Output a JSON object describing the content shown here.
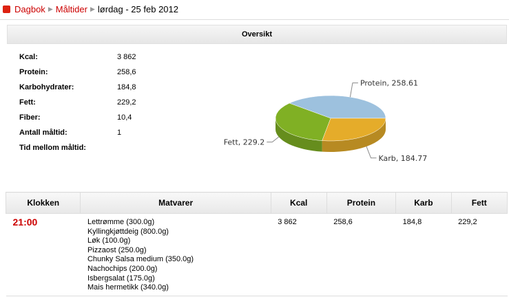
{
  "breadcrumb": [
    "Dagbok",
    "Måltider",
    "lørdag - 25 feb 2012"
  ],
  "overview": {
    "title": "Oversikt",
    "stats": [
      [
        "Kcal:",
        "3 862"
      ],
      [
        "Protein:",
        "258,6"
      ],
      [
        "Karbohydrater:",
        "184,8"
      ],
      [
        "Fett:",
        "229,2"
      ],
      [
        "Fiber:",
        "10,4"
      ],
      [
        "Antall måltid:",
        "1"
      ],
      [
        "Tid mellom måltid:"
      ]
    ]
  },
  "chart_data": {
    "type": "pie",
    "values": [
      258.61,
      184.77,
      229.2
    ],
    "labels": [
      "Protein, 258.61",
      "Karb, 184.77",
      "Fett, 229.2"
    ],
    "colors": [
      "#9dc1de",
      "#e5ac2a",
      "#80b024"
    ]
  },
  "table": {
    "headers": [
      "Klokken",
      "Matvarer",
      "Kcal",
      "Protein",
      "Karb",
      "Fett"
    ],
    "rows": [
      [
        "21:00",
        [
          "Lettrømme (300.0g)",
          "Kyllingkjøttdeig (800.0g)",
          "Løk (100.0g)",
          "Pizzaost (250.0g)",
          "Chunky Salsa medium (350.0g)",
          "Nachochips (200.0g)",
          "Isbergsalat (175.0g)",
          "Mais hermetikk (340.0g)"
        ],
        "3 862",
        "258,6",
        "184,8",
        "229,2"
      ]
    ]
  }
}
